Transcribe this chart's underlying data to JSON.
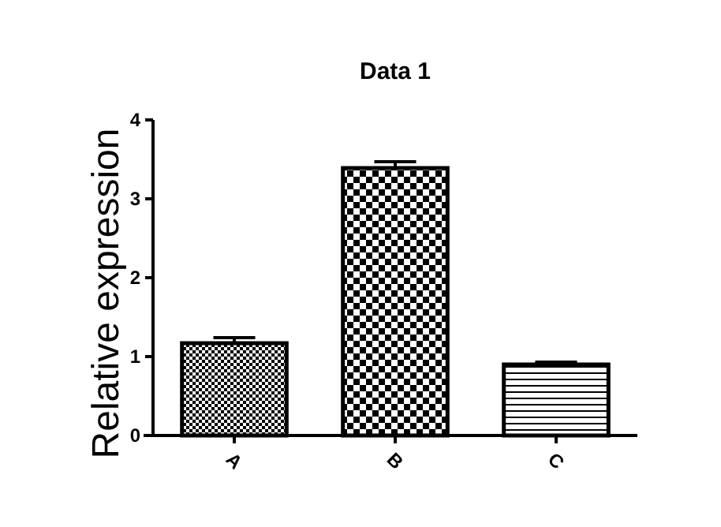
{
  "chart_data": {
    "type": "bar",
    "title": "Data 1",
    "ylabel": "Relative expression",
    "categories": [
      "A",
      "B",
      "C"
    ],
    "values": [
      1.17,
      3.39,
      0.9
    ],
    "errors": [
      0.07,
      0.08,
      0.03
    ],
    "colors": [
      "#000000",
      "#000000",
      "#000000"
    ],
    "ylim": [
      0,
      4
    ],
    "yticks": [
      0,
      1,
      2,
      3,
      4
    ],
    "grid": false
  }
}
